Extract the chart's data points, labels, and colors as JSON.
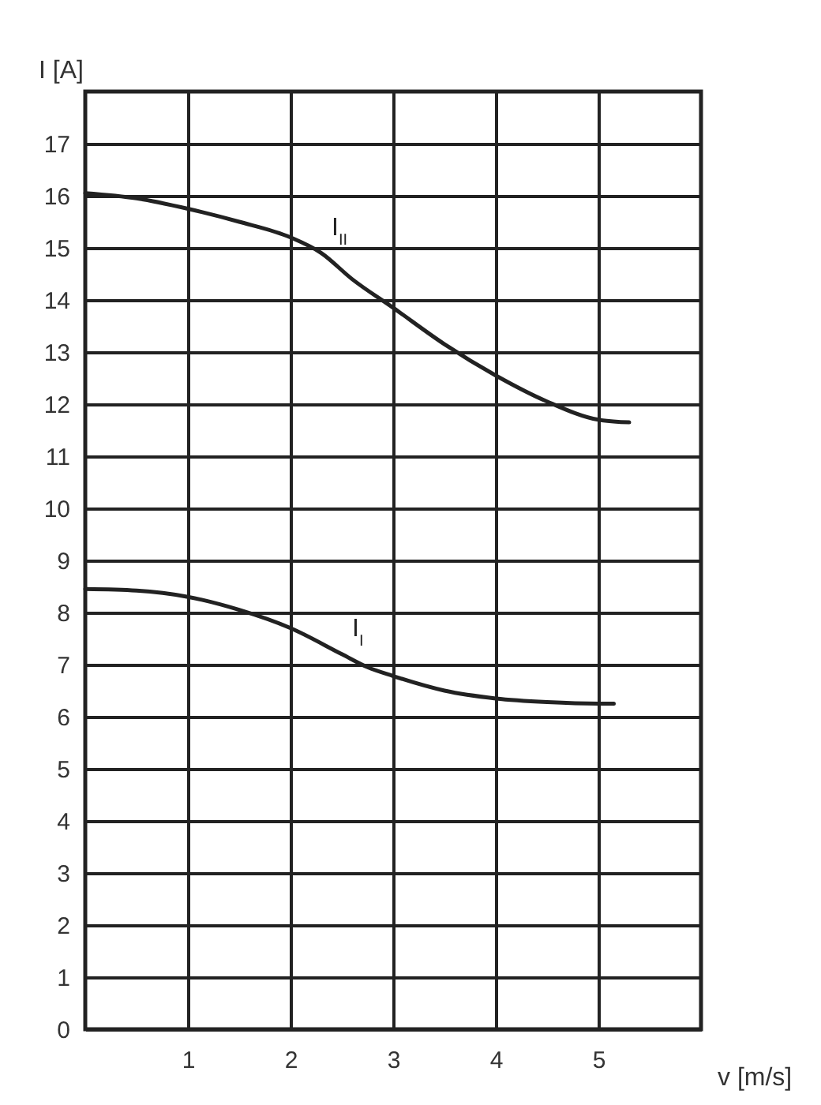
{
  "chart_data": {
    "type": "line",
    "xlabel": "v [m/s]",
    "ylabel": "I [A]",
    "xlim": [
      0,
      6
    ],
    "xticks": [
      1,
      2,
      3,
      4,
      5
    ],
    "ylim": [
      0,
      18
    ],
    "yticks": [
      0,
      1,
      2,
      3,
      4,
      5,
      6,
      7,
      8,
      9,
      10,
      11,
      12,
      13,
      14,
      15,
      16,
      17
    ],
    "grid": true,
    "line_style": "solid",
    "series": [
      {
        "name": "I$_{II}$",
        "color": "#222222",
        "x": [
          0,
          0.5,
          1,
          1.5,
          2,
          2.3,
          2.6,
          3,
          3.5,
          4,
          4.5,
          5,
          5.3
        ],
        "values": [
          16.05,
          15.95,
          15.75,
          15.5,
          15.2,
          14.9,
          14.4,
          13.85,
          13.15,
          12.55,
          12.05,
          11.7,
          11.65
        ]
      },
      {
        "name": "I$_{I}$",
        "color": "#222222",
        "x": [
          0,
          0.5,
          1,
          1.5,
          2,
          2.5,
          2.75,
          3,
          3.5,
          4,
          4.5,
          5,
          5.15
        ],
        "values": [
          8.45,
          8.42,
          8.3,
          8.05,
          7.7,
          7.2,
          6.95,
          6.78,
          6.5,
          6.35,
          6.28,
          6.25,
          6.25
        ]
      }
    ]
  }
}
